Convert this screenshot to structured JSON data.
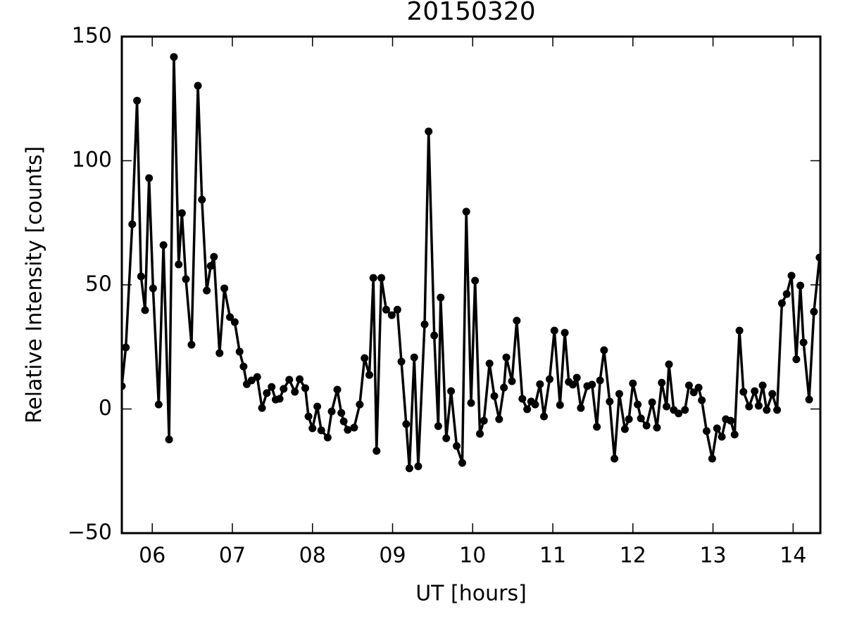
{
  "chart_data": {
    "type": "line",
    "title": "20150320",
    "xlabel": "UT [hours]",
    "ylabel": "Relative Intensity [counts]",
    "color": "#000000",
    "x": [
      5.62,
      5.67,
      5.75,
      5.81,
      5.86,
      5.91,
      5.96,
      6.01,
      6.08,
      6.14,
      6.21,
      6.27,
      6.33,
      6.37,
      6.42,
      6.49,
      6.57,
      6.62,
      6.68,
      6.73,
      6.77,
      6.84,
      6.9,
      6.97,
      7.03,
      7.09,
      7.14,
      7.18,
      7.24,
      7.31,
      7.37,
      7.43,
      7.49,
      7.54,
      7.59,
      7.64,
      7.71,
      7.78,
      7.84,
      7.91,
      7.95,
      8.0,
      8.06,
      8.11,
      8.19,
      8.24,
      8.31,
      8.36,
      8.39,
      8.44,
      8.52,
      8.59,
      8.65,
      8.71,
      8.76,
      8.8,
      8.86,
      8.92,
      8.99,
      9.06,
      9.11,
      9.17,
      9.21,
      9.27,
      9.32,
      9.4,
      9.45,
      9.52,
      9.57,
      9.6,
      9.67,
      9.73,
      9.8,
      9.87,
      9.92,
      9.98,
      10.03,
      10.09,
      10.14,
      10.21,
      10.27,
      10.33,
      10.39,
      10.42,
      10.49,
      10.55,
      10.62,
      10.68,
      10.73,
      10.78,
      10.84,
      10.89,
      10.96,
      11.02,
      11.09,
      11.15,
      11.2,
      11.25,
      11.3,
      11.35,
      11.43,
      11.49,
      11.55,
      11.59,
      11.64,
      11.71,
      11.77,
      11.83,
      11.9,
      11.95,
      12.0,
      12.06,
      12.1,
      12.17,
      12.24,
      12.3,
      12.36,
      12.42,
      12.45,
      12.51,
      12.57,
      12.65,
      12.7,
      12.76,
      12.82,
      12.86,
      12.92,
      12.99,
      13.05,
      13.11,
      13.16,
      13.22,
      13.27,
      13.33,
      13.38,
      13.45,
      13.52,
      13.57,
      13.62,
      13.67,
      13.74,
      13.8,
      13.86,
      13.92,
      13.98,
      14.04,
      14.09,
      14.13,
      14.2,
      14.26,
      14.33
    ],
    "values": [
      9.2,
      24.8,
      74.4,
      124.2,
      53.4,
      39.8,
      93,
      48.6,
      1.8,
      66,
      -12.3,
      141.8,
      58.2,
      78.9,
      52.3,
      25.9,
      130.2,
      84.3,
      47.7,
      57.6,
      61.3,
      22.5,
      48.6,
      37,
      35,
      23.1,
      17.1,
      10,
      11.5,
      12.9,
      0.4,
      6.4,
      8.9,
      3.8,
      4.1,
      8.1,
      11.8,
      6.9,
      12,
      8.4,
      -3,
      -7.8,
      1,
      -8.6,
      -11.5,
      -1,
      7.8,
      -1.6,
      -5,
      -8.4,
      -7.5,
      1.8,
      20.5,
      13.7,
      52.8,
      -16.9,
      52.8,
      40,
      37.8,
      40,
      19.1,
      -6.1,
      -23.9,
      20.8,
      -23.1,
      34.1,
      111.8,
      29.6,
      -6.9,
      44.9,
      -11.8,
      7.2,
      -14.9,
      -21.7,
      79.5,
      2.4,
      51.7,
      -10,
      -4.7,
      18.3,
      5.2,
      -4.1,
      8.6,
      20.8,
      11.2,
      35.6,
      4.1,
      -0.1,
      3,
      1.8,
      10,
      -3,
      12,
      31.6,
      1.6,
      30.7,
      10.9,
      9.8,
      12.6,
      0.4,
      9.2,
      9.8,
      -7.2,
      11.5,
      23.7,
      3,
      -20,
      6.1,
      -8.1,
      -4.1,
      10.3,
      1.8,
      -3.8,
      -6.7,
      2.7,
      -7.5,
      10.6,
      1,
      18,
      -0.4,
      -1.8,
      -0.4,
      9.5,
      6.7,
      8.6,
      3.5,
      -8.9,
      -20,
      -7.8,
      -11.2,
      -4.1,
      -4.7,
      -10.3,
      31.6,
      6.9,
      1,
      7.2,
      1.3,
      9.5,
      -0.4,
      6.1,
      -0.4,
      42.6,
      46.3,
      53.7,
      20,
      49.7,
      26.8,
      3.8,
      39.2,
      61
    ],
    "xlim": [
      5.62,
      14.34
    ],
    "ylim": [
      -50,
      150
    ],
    "xticks": [
      {
        "value": 6,
        "label": "06"
      },
      {
        "value": 7,
        "label": "07"
      },
      {
        "value": 8,
        "label": "08"
      },
      {
        "value": 9,
        "label": "09"
      },
      10,
      11,
      12,
      13,
      14
    ],
    "yticks": [
      {
        "value": -50,
        "label": "−50"
      },
      0,
      50,
      100,
      150
    ]
  }
}
